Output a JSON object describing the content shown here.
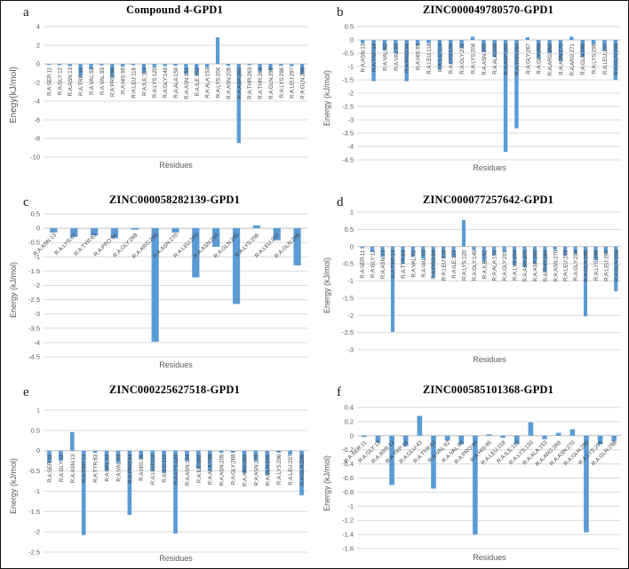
{
  "colors": {
    "bar": "#5b9bd5",
    "gridline": "#d9d9d9",
    "zero_axis": "#bfbfbf",
    "axis_text": "#595959",
    "category_text": "#404040"
  },
  "chart_data": [
    {
      "type": "bar",
      "letter": "a",
      "title": "Compound 4-GPD1",
      "ylabel": "Enegy(kJ/mol)",
      "xlabel": "Residues",
      "ylim": [
        -10,
        4
      ],
      "ystep": 2,
      "label_rotation": 90,
      "bar_color": "#5b9bd5",
      "grid": true,
      "categories": [
        "R:A:SER:11",
        "R:A:GLY:12",
        "R:A:ASN:13",
        "R:A:TRP:14",
        "R:A:VAL:92",
        "R:A:VAL:93",
        "R:A:PRO:94",
        "R:A:HIS:95",
        "R:A:LEU:118",
        "R:A:ILE:119",
        "R:A:LYS:120",
        "R:A:GLY:149",
        "R:A:ALA:150",
        "R:A:ASN:151",
        "R:A:ILE:152",
        "R:A:ALA:153",
        "R:A:LYS:204",
        "R:A:ASN:205",
        "R:A:ASP:260",
        "R:A:THR:263",
        "R:A:THR:264",
        "R:A:GLN:295",
        "R:A:LYS:296",
        "R:A:LEU:297",
        "R:A:GLN:298"
      ],
      "values": [
        -0.1,
        -0.15,
        -0.25,
        -1.4,
        -0.55,
        -0.15,
        -1.45,
        -0.3,
        -0.15,
        -1.0,
        -0.35,
        -0.25,
        -0.2,
        -1.1,
        -1.25,
        -0.35,
        2.85,
        -0.2,
        -8.5,
        -0.15,
        -0.8,
        -0.7,
        -0.2,
        -0.25,
        -1.1
      ]
    },
    {
      "type": "bar",
      "letter": "b",
      "title": "ZINC000049780570-GPD1",
      "ylabel": "Energy (kJ/mol)",
      "xlabel": "Residues",
      "ylim": [
        -4.5,
        0.5
      ],
      "ystep": 0.5,
      "label_rotation": 90,
      "bar_color": "#5b9bd5",
      "grid": true,
      "categories": [
        "R:A:ASN:13",
        "R:A:TRP:14",
        "R:A:VAL:92",
        "R:A:VAL:93",
        "R:A:PRO:94",
        "R:A:HIS:95",
        "R:A:LEU:118",
        "R:A:ILE:119",
        "R:A:LYS:120",
        "R:A:GLY:201",
        "R:A:LYS:204",
        "R:A:ASN:205",
        "R:A:ALA:208",
        "R:A:ASP:260",
        "R:A:THR:264",
        "R:A:GLY:267",
        "R:A:GLY:268",
        "R:A:ARG:269",
        "R:A:ASN:270",
        "R:A:ARG:271",
        "R:A:GLN:295",
        "R:A:LYS:296",
        "R:A:LEU:297",
        "R:A:GLN:298"
      ],
      "values": [
        -0.12,
        -1.55,
        -0.4,
        -0.5,
        -1.55,
        -0.2,
        -0.12,
        -1.1,
        -0.9,
        -0.3,
        0.12,
        -0.45,
        -0.65,
        -4.2,
        -3.32,
        0.1,
        -0.7,
        -0.5,
        -0.8,
        0.12,
        -0.65,
        -0.15,
        -0.4,
        -1.5
      ]
    },
    {
      "type": "bar",
      "letter": "c",
      "title": "ZINC000058282139-GPD1",
      "ylabel": "Energy (kJ/mol)",
      "xlabel": "Residues",
      "ylim": [
        -4.5,
        0.5
      ],
      "ystep": 0.5,
      "label_rotation": 45,
      "bar_color": "#5b9bd5",
      "grid": true,
      "categories": [
        "R:A:ASN:13",
        "R:A:LYS:62",
        "R:A:TYR:63",
        "R:A:PRO:94",
        "R:A:GLY:268",
        "R:A:ARG:269",
        "R:A:ASN:270",
        "R:A:LEU:293",
        "R:A:ASN:294",
        "R:A:GLN:295",
        "R:A:LYS:296",
        "R:A:LEU:297",
        "R:A:GLN:298"
      ],
      "values": [
        -0.15,
        -0.3,
        -0.25,
        -0.35,
        -0.05,
        -3.97,
        -0.15,
        -1.72,
        -0.65,
        -2.65,
        0.1,
        -0.42,
        -1.3
      ]
    },
    {
      "type": "bar",
      "letter": "d",
      "title": "ZINC000077257642-GPD1",
      "ylabel": "Energy (kJ/mol)",
      "xlabel": "Residues",
      "ylim": [
        -3,
        1
      ],
      "ystep": 0.5,
      "label_rotation": 90,
      "bar_color": "#5b9bd5",
      "grid": true,
      "categories": [
        "R:A:SER:11",
        "R:A:GLY:12",
        "R:A:ASN:13",
        "R:A:TRP:14",
        "R:A:TYR:63",
        "R:A:VAL:92",
        "R:A:VAL:93",
        "R:A:PRO:94",
        "R:A:LEU:118",
        "R:A:ILE:119",
        "R:A:LYS:120",
        "R:A:GLY:149",
        "R:A:ILE:152",
        "R:A:ALA:153",
        "R:A:GLY:201",
        "R:A:LYS:204",
        "R:A:ASN:205",
        "R:A:ASP:260",
        "R:A:THR:264",
        "R:A:ASN:270",
        "R:A:LEU:293",
        "R:A:GLY:294",
        "R:A:GLN:295",
        "R:A:LYS:296",
        "R:A:LEU:297",
        "R:A:GLN:298"
      ],
      "values": [
        -0.05,
        -0.15,
        -0.3,
        -2.48,
        -0.5,
        -0.3,
        -0.35,
        -0.9,
        -0.35,
        -0.3,
        0.77,
        -0.1,
        -0.45,
        -0.25,
        -0.15,
        -0.55,
        -0.6,
        -0.5,
        -0.75,
        -0.1,
        -0.25,
        -0.2,
        -2.03,
        -0.4,
        -0.2,
        -1.3
      ]
    },
    {
      "type": "bar",
      "letter": "e",
      "title": "ZINC000225627518-GPD1",
      "ylabel": "Energy (kJ/mol)",
      "xlabel": "Residues",
      "ylim": [
        -2.5,
        1
      ],
      "ystep": 0.5,
      "label_rotation": 90,
      "bar_color": "#5b9bd5",
      "grid": true,
      "categories": [
        "R:A:SER:11",
        "R:A:GLY:12",
        "R:A:ASN:13",
        "R:A:TRP:14",
        "R:A:TYR:63",
        "R:A:VAL:92",
        "R:A:VAL:93",
        "R:A:PRO:94",
        "R:A:HIS:95",
        "R:A:LEU:118",
        "R:A:ILE:119",
        "R:A:LYS:120",
        "R:A:ASN:154",
        "R:A:ILE:162",
        "R:A:ALA:198",
        "R:A:ASN:205",
        "R:A:GLY:268",
        "R:A:ARG:269",
        "R:A:ASN:270",
        "R:A:GLN:295",
        "R:A:LYS:296",
        "R:A:LEU:297",
        "R:A:GLN:298"
      ],
      "values": [
        -0.3,
        -0.25,
        0.46,
        -2.08,
        -0.05,
        -0.5,
        -0.3,
        -1.58,
        -0.2,
        -0.5,
        -0.55,
        -2.04,
        -0.25,
        -0.45,
        -0.5,
        -0.05,
        -0.05,
        -0.55,
        -0.25,
        -0.6,
        -0.05,
        -0.1,
        -1.1
      ]
    },
    {
      "type": "bar",
      "letter": "f",
      "title": "ZINC000585101368-GPD1",
      "ylabel": "Energy (kJ/mol)",
      "xlabel": "Residues",
      "ylim": [
        -1.6,
        0.4
      ],
      "ystep": 0.2,
      "label_rotation": 45,
      "bar_color": "#5b9bd5",
      "grid": true,
      "categories": [
        "R:A:SER:11",
        "R:A:GLY:12",
        "R:A:ASN:13",
        "R:A:TRP:14",
        "R:A:GLU:43",
        "R:A:TYR:63",
        "R:A:VAL:92",
        "R:A:VAL:93",
        "R:A:PRO:94",
        "R:A:HIS:95",
        "R:A:LEU:118",
        "R:A:ILE:119",
        "R:A:LYS:120",
        "R:A:ALA:153",
        "R:A:ARG:269",
        "R:A:ASN:270",
        "R:A:GLN:295",
        "R:A:LYS:296",
        "R:A:GLN:298"
      ],
      "values": [
        -0.02,
        -0.1,
        -0.7,
        -0.15,
        0.28,
        -0.75,
        -0.07,
        -0.12,
        -1.4,
        0.02,
        -0.03,
        -0.12,
        0.19,
        -0.05,
        0.04,
        0.09,
        -1.37,
        -0.12,
        -0.08
      ]
    }
  ]
}
